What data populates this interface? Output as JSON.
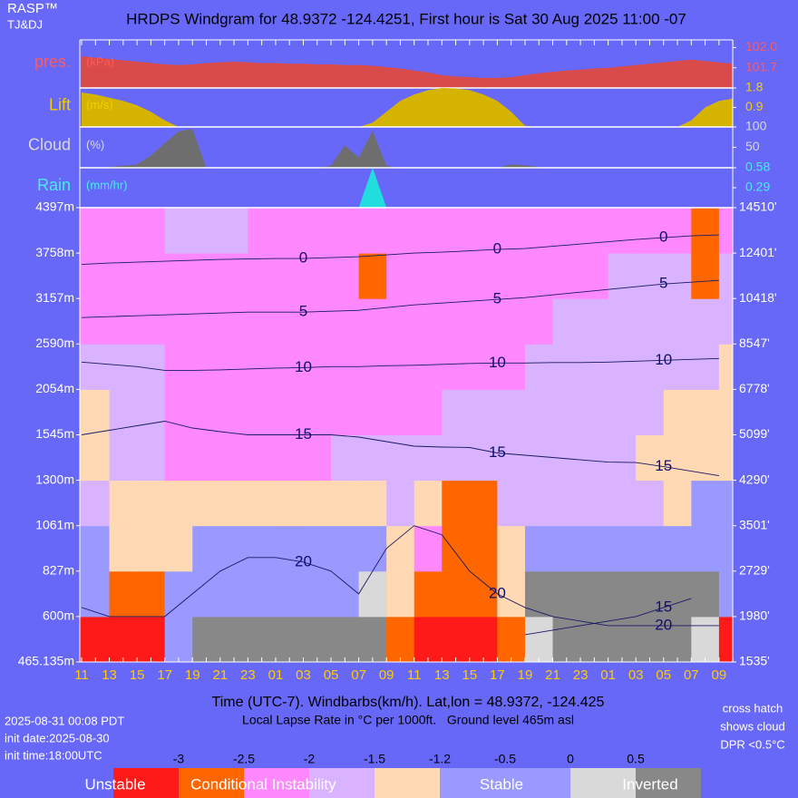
{
  "header": {
    "brand": "RASP™",
    "authors": "TJ&DJ",
    "title": "HRDPS Windgram for 48.9372 -124.4251, First hour is Sat 30 Aug 2025 11:00 -07"
  },
  "chart_data": [
    {
      "type": "area",
      "label": "pres.",
      "unit": "(kPa)",
      "color": "#d94a4a",
      "text_color": "#ff5a5a",
      "ylim": [
        101.4,
        102.1
      ],
      "yticks": [
        {
          "value": 102.0,
          "label": "102.0"
        },
        101.7
      ],
      "values": [
        101.87,
        101.85,
        101.83,
        101.81,
        101.79,
        101.77,
        101.75,
        101.74,
        101.75,
        101.77,
        101.78,
        101.79,
        101.78,
        101.77,
        101.77,
        101.76,
        101.76,
        101.75,
        101.75,
        101.74,
        101.74,
        101.73,
        101.71,
        101.69,
        101.66,
        101.63,
        101.59,
        101.57,
        101.56,
        101.55,
        101.55,
        101.56,
        101.59,
        101.62,
        101.64,
        101.66,
        101.67,
        101.69,
        101.7,
        101.72,
        101.74,
        101.76,
        101.78,
        101.8,
        101.82,
        101.8,
        101.78,
        101.76
      ]
    },
    {
      "type": "area",
      "label": "Lift",
      "unit": "(m/s)",
      "color": "#d4b400",
      "text_color": "#f0d000",
      "ylim": [
        0,
        1.8
      ],
      "yticks": [
        1.8,
        0.9
      ],
      "values": [
        1.59,
        1.5,
        1.35,
        1.2,
        1.0,
        0.7,
        0.3,
        0,
        0,
        0,
        0,
        0,
        0,
        0,
        0,
        0,
        0,
        0,
        0,
        0,
        0,
        0.2,
        0.7,
        1.2,
        1.5,
        1.7,
        1.8,
        1.78,
        1.7,
        1.5,
        1.2,
        0.7,
        0.05,
        0,
        0,
        0,
        0,
        0,
        0,
        0,
        0,
        0,
        0,
        0,
        0.3,
        0.9,
        1.2,
        1.3
      ]
    },
    {
      "type": "area",
      "label": "Cloud",
      "unit": "(%)",
      "color": "#6e6e6e",
      "text_color": "#d8d8d8",
      "ylim": [
        0,
        100
      ],
      "yticks": [
        100,
        50
      ],
      "values": [
        0,
        0,
        2,
        5,
        8,
        30,
        60,
        89,
        95,
        0,
        0,
        0,
        0,
        0,
        0,
        0,
        0,
        0,
        5,
        55,
        25,
        90,
        5,
        0,
        0,
        0,
        0,
        0,
        0,
        0,
        0,
        8,
        6,
        2,
        0,
        0,
        0,
        0,
        0,
        0,
        0,
        0,
        0,
        0,
        0,
        0,
        0,
        0
      ]
    },
    {
      "type": "area",
      "label": "Rain",
      "unit": "(mm/hr)",
      "color": "#22dddd",
      "text_color": "#44eeee",
      "ylim": [
        0,
        0.58
      ],
      "yticks": [
        0.58,
        0.29
      ],
      "values": [
        0,
        0,
        0,
        0,
        0,
        0,
        0,
        0,
        0,
        0,
        0,
        0,
        0,
        0,
        0,
        0,
        0,
        0,
        0,
        0,
        0,
        0.58,
        0,
        0,
        0,
        0,
        0,
        0,
        0,
        0,
        0,
        0,
        0,
        0,
        0,
        0,
        0,
        0,
        0,
        0,
        0,
        0,
        0,
        0,
        0,
        0,
        0,
        0
      ]
    },
    {
      "type": "heatmap",
      "xlabel": "Time (UTC-7). Windbarbs(km/h). Lat,lon = 48.9372, -124.425",
      "subtitle": "Local Lapse Rate in °C per 1000ft.   Ground level 465m asl",
      "categories": [
        "11",
        null,
        "13",
        null,
        "15",
        null,
        "17",
        null,
        "19",
        null,
        "21",
        null,
        "23",
        null,
        "01",
        null,
        "03",
        null,
        "05",
        null,
        "07",
        null,
        "09",
        null,
        "11",
        null,
        "13",
        null,
        "15",
        null,
        "17",
        null,
        "19",
        null,
        "21",
        null,
        "23",
        null,
        "01",
        null,
        "03",
        null,
        "05",
        null,
        "07",
        null,
        "09",
        null
      ],
      "ylim": [
        0,
        10
      ],
      "yticks": [
        {
          "value": 0,
          "label": "465.135m"
        },
        {
          "value": 1,
          "label": "600m"
        },
        {
          "value": 2,
          "label": "827m"
        },
        {
          "value": 3,
          "label": "1061m"
        },
        {
          "value": 4,
          "label": "1300m"
        },
        {
          "value": 5,
          "label": "1545m"
        },
        {
          "value": 6,
          "label": "2054m"
        },
        {
          "value": 7,
          "label": "2590m"
        },
        {
          "value": 8,
          "label": "3157m"
        },
        {
          "value": 9,
          "label": "3758m"
        },
        {
          "value": 10,
          "label": "4397m"
        }
      ],
      "y2ticks": [
        {
          "value": 0,
          "label": "1535'"
        },
        {
          "value": 1,
          "label": "1980'"
        },
        {
          "value": 2,
          "label": "2729'"
        },
        {
          "value": 3,
          "label": "3501'"
        },
        {
          "value": 4,
          "label": "4290'"
        },
        {
          "value": 5,
          "label": "5099'"
        },
        {
          "value": 6,
          "label": "6778'"
        },
        {
          "value": 7,
          "label": "8547'"
        },
        {
          "value": 8,
          "label": "10418'"
        },
        {
          "value": 9,
          "label": "12401'"
        },
        {
          "value": 10,
          "label": "14510'"
        }
      ],
      "z": [
        [
          -3.2,
          -3.2,
          -3.2,
          -0.8,
          0.7,
          0.7,
          0.7,
          0.7,
          0.7,
          0.7,
          0.7,
          -2.7,
          -3.2,
          -3.2,
          -3.2,
          -2.7,
          0.2,
          0.7,
          0.7,
          0.7,
          0.7,
          0.7,
          0.2,
          -3.2
        ],
        [
          -0.8,
          -2.7,
          -2.7,
          -0.8,
          -0.8,
          -0.8,
          -0.8,
          -0.8,
          -0.8,
          -0.8,
          0.2,
          -1.3,
          -2.7,
          -2.7,
          -2.7,
          -1.3,
          0.7,
          0.7,
          0.7,
          0.7,
          0.7,
          0.7,
          0.7,
          -0.8
        ],
        [
          -0.8,
          -1.3,
          -1.3,
          -1.3,
          -0.8,
          -0.8,
          -0.8,
          -0.8,
          -0.8,
          -0.8,
          -0.8,
          -1.3,
          -2.2,
          -2.7,
          -2.7,
          -1.3,
          -0.8,
          -0.8,
          -0.8,
          -0.8,
          -0.8,
          -0.8,
          -0.8,
          -0.8
        ],
        [
          -1.7,
          -1.3,
          -1.3,
          -1.3,
          -1.3,
          -1.3,
          -1.3,
          -1.3,
          -1.3,
          -1.3,
          -1.3,
          -1.7,
          -1.3,
          -2.7,
          -2.7,
          -1.7,
          -1.7,
          -1.7,
          -1.7,
          -1.7,
          -1.7,
          -1.3,
          -0.8,
          -0.8
        ],
        [
          -1.3,
          -1.7,
          -1.7,
          -2.2,
          -2.2,
          -2.2,
          -2.2,
          -2.2,
          -2.2,
          -1.7,
          -1.7,
          -1.7,
          -1.7,
          -1.7,
          -1.7,
          -1.7,
          -1.7,
          -1.7,
          -1.7,
          -1.7,
          -1.3,
          -1.3,
          -1.3,
          -1.3
        ],
        [
          -1.3,
          -1.7,
          -1.7,
          -2.2,
          -2.2,
          -2.2,
          -2.2,
          -2.2,
          -2.2,
          -2.2,
          -2.2,
          -2.2,
          -2.2,
          -1.7,
          -1.7,
          -1.7,
          -1.7,
          -1.7,
          -1.7,
          -1.7,
          -1.7,
          -1.3,
          -1.3,
          -1.3
        ],
        [
          -1.7,
          -1.7,
          -1.7,
          -2.2,
          -2.2,
          -2.2,
          -2.2,
          -2.2,
          -2.2,
          -2.2,
          -2.2,
          -2.2,
          -2.2,
          -2.2,
          -2.2,
          -2.2,
          -1.7,
          -1.7,
          -1.7,
          -1.7,
          -1.7,
          -1.7,
          -1.7,
          -1.3
        ],
        [
          -2.2,
          -2.2,
          -2.2,
          -2.2,
          -2.2,
          -2.2,
          -2.2,
          -2.2,
          -2.2,
          -2.2,
          -2.2,
          -2.2,
          -2.2,
          -2.2,
          -2.2,
          -2.2,
          -2.2,
          -1.7,
          -1.7,
          -1.7,
          -1.7,
          -1.7,
          -1.7,
          -1.7
        ],
        [
          -2.2,
          -2.2,
          -2.2,
          -2.2,
          -2.2,
          -2.2,
          -2.2,
          -2.2,
          -2.2,
          -2.2,
          -2.7,
          -2.2,
          -2.2,
          -2.2,
          -2.2,
          -2.2,
          -2.2,
          -2.2,
          -2.2,
          -1.7,
          -1.7,
          -1.7,
          -2.7,
          -1.7
        ],
        [
          -2.2,
          -2.2,
          -2.2,
          -1.7,
          -1.7,
          -1.7,
          -2.2,
          -2.2,
          -2.2,
          -2.2,
          -2.2,
          -2.2,
          -2.2,
          -2.2,
          -2.2,
          -2.2,
          -2.2,
          -2.2,
          -2.2,
          -2.2,
          -2.2,
          -2.2,
          -2.7,
          -2.2
        ]
      ],
      "isotherms": [
        {
          "level": 0,
          "values": [
            8.75,
            8.78,
            8.8,
            8.82,
            8.84,
            8.86,
            8.87,
            8.88,
            8.88,
            8.9,
            8.92,
            8.96,
            9.0,
            9.02,
            9.05,
            9.08,
            9.1,
            9.15,
            9.2,
            9.25,
            9.3,
            9.34,
            9.38,
            9.4
          ]
        },
        {
          "level": 5,
          "values": [
            7.58,
            7.6,
            7.62,
            7.64,
            7.66,
            7.68,
            7.7,
            7.7,
            7.7,
            7.72,
            7.74,
            7.8,
            7.86,
            7.9,
            7.94,
            7.98,
            8.02,
            8.08,
            8.14,
            8.2,
            8.26,
            8.32,
            8.36,
            8.4
          ]
        },
        {
          "level": 10,
          "values": [
            6.6,
            6.55,
            6.5,
            6.42,
            6.42,
            6.43,
            6.45,
            6.47,
            6.48,
            6.5,
            6.5,
            6.52,
            6.53,
            6.55,
            6.57,
            6.58,
            6.58,
            6.59,
            6.59,
            6.6,
            6.62,
            6.64,
            6.66,
            6.68
          ]
        },
        {
          "level": 15,
          "values": [
            5.0,
            5.1,
            5.2,
            5.3,
            5.15,
            5.07,
            5.0,
            5.0,
            5.0,
            5.0,
            4.95,
            4.85,
            4.75,
            4.73,
            4.72,
            4.6,
            4.55,
            4.5,
            4.45,
            4.4,
            4.39,
            4.3,
            4.2,
            4.1
          ]
        },
        {
          "level": 20,
          "values": [
            1.2,
            1.0,
            1.0,
            1.0,
            1.5,
            2.0,
            2.3,
            2.3,
            2.2,
            2.0,
            1.5,
            2.5,
            3.0,
            2.8,
            2.0,
            1.5,
            1.2,
            1.0,
            0.9,
            0.8,
            0.8,
            0.8,
            0.8,
            0.8
          ]
        },
        {
          "level": 15,
          "values": [
            null,
            null,
            null,
            null,
            null,
            null,
            null,
            null,
            null,
            null,
            null,
            null,
            null,
            null,
            null,
            null,
            0.6,
            0.7,
            0.8,
            0.9,
            1.0,
            1.2,
            1.4,
            null
          ]
        }
      ],
      "colorbar": {
        "boundaries": [
          -3,
          -2.5,
          -2,
          -1.5,
          -1.2,
          -0.5,
          0,
          0.5
        ],
        "colors": [
          "#ff1a1a",
          "#ff6600",
          "#ff88ff",
          "#d9b3ff",
          "#ffd9b3",
          "#9999ff",
          "#9999ff",
          "#d9d9d9",
          "#888888"
        ],
        "labels": [
          "Unstable",
          "Conditional Instability",
          "Stable",
          "Inverted"
        ]
      }
    }
  ],
  "footer": {
    "generated": "2025-08-31 00:08 PDT",
    "init_date": "init date:2025-08-30",
    "init_time": "init time:18:00UTC",
    "notes": [
      "cross hatch",
      "shows cloud",
      "DPR <0.5°C"
    ]
  }
}
